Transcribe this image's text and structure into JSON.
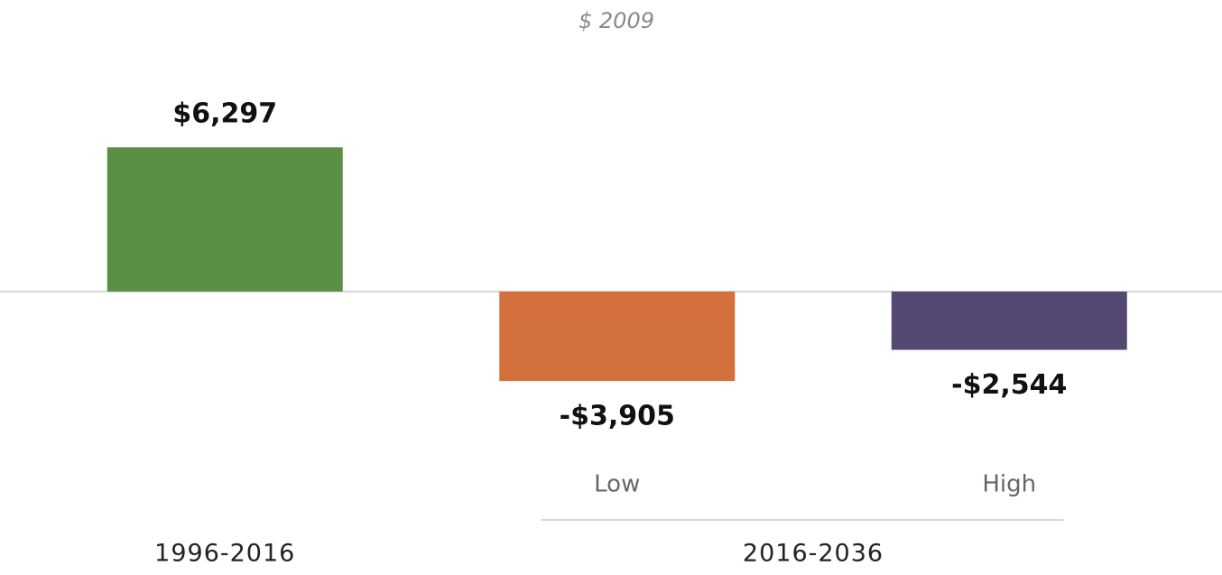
{
  "chart_data": {
    "type": "bar",
    "subtitle": "$ 2009",
    "categories": [
      null,
      "Low",
      "High"
    ],
    "values": [
      6297,
      -3905,
      -2544
    ],
    "value_labels": [
      "$6,297",
      "-$3,905",
      "-$2,544"
    ],
    "colors": [
      "#5a8f46",
      "#d3703b",
      "#554872"
    ],
    "groups": [
      {
        "name": "1996-2016",
        "count": 1
      },
      {
        "name": "2016-2036",
        "count": 2
      }
    ],
    "ylim": [
      -8000,
      8000
    ]
  }
}
